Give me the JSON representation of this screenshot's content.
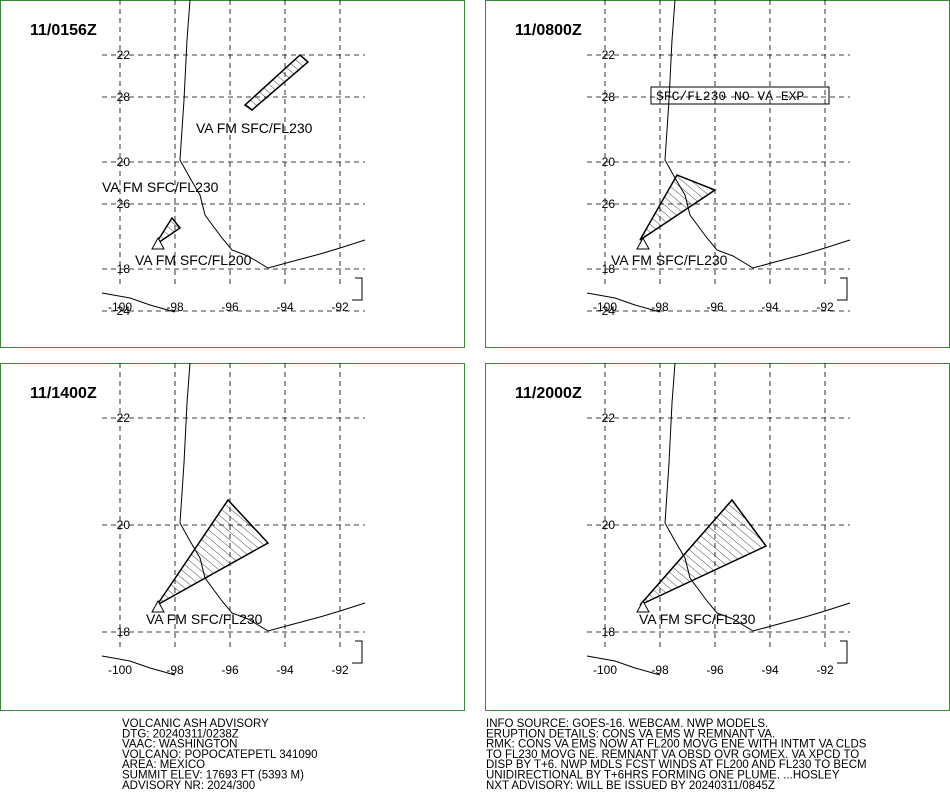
{
  "map": {
    "xlim": [
      -100.8,
      -90.7
    ],
    "ylim": [
      17.3,
      28
    ],
    "xticks": [
      -100,
      -98,
      -96,
      -94,
      -92
    ],
    "yticks": [
      18,
      20,
      22,
      24,
      26,
      28
    ]
  },
  "panels": [
    {
      "time": "11/0156Z",
      "labels": [
        "VA FM SFC/FL230",
        "VA FM SFC/FL230",
        "VA FM SFC/FL200"
      ]
    },
    {
      "time": "11/0800Z",
      "box": "SFC/FL230 NO VA EXP",
      "labels": [
        "VA FM SFC/FL230"
      ]
    },
    {
      "time": "11/1400Z",
      "labels": [
        "VA FM SFC/FL230"
      ]
    },
    {
      "time": "11/2000Z",
      "labels": [
        "VA FM SFC/FL230"
      ]
    }
  ],
  "advisory_left": [
    "VOLCANIC ASH ADVISORY",
    "DTG: 20240311/0238Z",
    "VAAC: WASHINGTON",
    "VOLCANO: POPOCATEPETL 341090",
    "AREA: MEXICO",
    "SUMMIT ELEV: 17693 FT (5393 M)",
    "ADVISORY NR: 2024/300"
  ],
  "advisory_right": [
    "INFO SOURCE: GOES-16. WEBCAM. NWP MODELS.",
    "ERUPTION DETAILS: CONS VA EMS W REMNANT VA.",
    "RMK: CONS VA EMS NOW AT FL200 MOVG ENE WITH INTMT VA CLDS",
    "TO FL230 MOVG NE. REMNANT VA OBSD OVR GOMEX. VA XPCD TO",
    "DISP BY T+6. NWP MDLS FCST WINDS AT FL200 AND FL230 TO BECM",
    "UNIDIRECTIONAL BY T+6HRS FORMING ONE PLUME. ...HOSLEY",
    "NXT ADVISORY: WILL BE ISSUED BY 20240311/0845Z"
  ]
}
